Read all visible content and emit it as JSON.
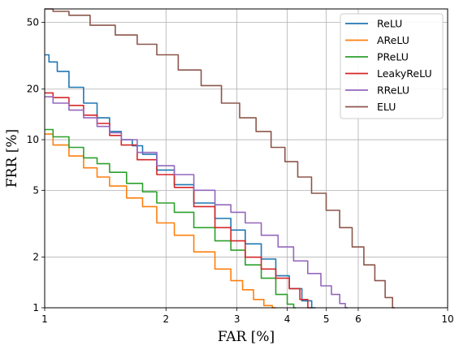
{
  "chart_data": {
    "type": "line",
    "xlabel": "FAR [%]",
    "ylabel": "FRR [%]",
    "xscale": "log",
    "yscale": "log",
    "xlim": [
      1,
      10
    ],
    "ylim": [
      1,
      60
    ],
    "xticks": [
      1,
      2,
      3,
      4,
      5,
      6,
      10
    ],
    "yticks": [
      1,
      2,
      5,
      10,
      20,
      50
    ],
    "grid": true,
    "legend_position": "top-right",
    "series": [
      {
        "name": "ReLU",
        "color": "#1f77b4",
        "points": [
          [
            1.0,
            32
          ],
          [
            1.05,
            29
          ],
          [
            1.1,
            25.5
          ],
          [
            1.2,
            20.5
          ],
          [
            1.3,
            16.5
          ],
          [
            1.4,
            13.5
          ],
          [
            1.5,
            11.2
          ],
          [
            1.6,
            10
          ],
          [
            1.7,
            9.2
          ],
          [
            1.8,
            8.2
          ],
          [
            2.0,
            6.6
          ],
          [
            2.2,
            5.4
          ],
          [
            2.5,
            4.2
          ],
          [
            2.8,
            3.4
          ],
          [
            3.0,
            2.9
          ],
          [
            3.3,
            2.4
          ],
          [
            3.6,
            1.95
          ],
          [
            3.9,
            1.55
          ],
          [
            4.2,
            1.3
          ],
          [
            4.5,
            1.1
          ],
          [
            4.7,
            1.0
          ]
        ]
      },
      {
        "name": "AReLU",
        "color": "#ff7f0e",
        "points": [
          [
            1.0,
            10.8
          ],
          [
            1.1,
            9.3
          ],
          [
            1.2,
            8.0
          ],
          [
            1.3,
            6.8
          ],
          [
            1.4,
            6.0
          ],
          [
            1.5,
            5.3
          ],
          [
            1.7,
            4.5
          ],
          [
            1.8,
            4.0
          ],
          [
            2.0,
            3.2
          ],
          [
            2.2,
            2.7
          ],
          [
            2.5,
            2.15
          ],
          [
            2.8,
            1.7
          ],
          [
            3.0,
            1.45
          ],
          [
            3.2,
            1.28
          ],
          [
            3.4,
            1.12
          ],
          [
            3.6,
            1.03
          ],
          [
            3.75,
            1.0
          ]
        ]
      },
      {
        "name": "PReLU",
        "color": "#2ca02c",
        "points": [
          [
            1.0,
            11.5
          ],
          [
            1.1,
            10.4
          ],
          [
            1.2,
            9.0
          ],
          [
            1.3,
            7.8
          ],
          [
            1.4,
            7.2
          ],
          [
            1.5,
            6.4
          ],
          [
            1.7,
            5.5
          ],
          [
            1.8,
            4.9
          ],
          [
            2.0,
            4.2
          ],
          [
            2.2,
            3.7
          ],
          [
            2.5,
            3.0
          ],
          [
            2.8,
            2.5
          ],
          [
            3.0,
            2.2
          ],
          [
            3.3,
            1.8
          ],
          [
            3.6,
            1.5
          ],
          [
            3.9,
            1.2
          ],
          [
            4.1,
            1.05
          ],
          [
            4.2,
            1.0
          ]
        ]
      },
      {
        "name": "LeakyReLU",
        "color": "#d62728",
        "points": [
          [
            1.0,
            19.0
          ],
          [
            1.1,
            17.8
          ],
          [
            1.2,
            16.0
          ],
          [
            1.3,
            14.0
          ],
          [
            1.4,
            12.5
          ],
          [
            1.5,
            10.6
          ],
          [
            1.6,
            9.3
          ],
          [
            1.8,
            7.6
          ],
          [
            2.0,
            6.2
          ],
          [
            2.2,
            5.2
          ],
          [
            2.5,
            4.0
          ],
          [
            2.8,
            3.0
          ],
          [
            3.0,
            2.5
          ],
          [
            3.3,
            2.0
          ],
          [
            3.6,
            1.7
          ],
          [
            3.9,
            1.5
          ],
          [
            4.2,
            1.3
          ],
          [
            4.4,
            1.12
          ],
          [
            4.6,
            1.0
          ]
        ]
      },
      {
        "name": "RReLU",
        "color": "#9467bd",
        "points": [
          [
            1.0,
            18.0
          ],
          [
            1.1,
            16.5
          ],
          [
            1.2,
            15.0
          ],
          [
            1.3,
            13.5
          ],
          [
            1.4,
            12.0
          ],
          [
            1.5,
            11.0
          ],
          [
            1.6,
            10.0
          ],
          [
            1.8,
            8.4
          ],
          [
            2.0,
            7.0
          ],
          [
            2.2,
            6.2
          ],
          [
            2.5,
            5.0
          ],
          [
            2.8,
            4.1
          ],
          [
            3.0,
            3.7
          ],
          [
            3.3,
            3.2
          ],
          [
            3.6,
            2.7
          ],
          [
            4.0,
            2.3
          ],
          [
            4.3,
            1.9
          ],
          [
            4.7,
            1.6
          ],
          [
            5.0,
            1.35
          ],
          [
            5.3,
            1.2
          ],
          [
            5.5,
            1.06
          ],
          [
            5.65,
            1.0
          ]
        ]
      },
      {
        "name": "ELU",
        "color": "#8c564b",
        "points": [
          [
            1.0,
            60
          ],
          [
            1.1,
            58
          ],
          [
            1.2,
            55
          ],
          [
            1.4,
            48
          ],
          [
            1.6,
            42
          ],
          [
            1.8,
            37
          ],
          [
            2.0,
            32
          ],
          [
            2.3,
            26
          ],
          [
            2.6,
            21
          ],
          [
            2.9,
            16.5
          ],
          [
            3.2,
            13.5
          ],
          [
            3.5,
            11.2
          ],
          [
            3.8,
            9.0
          ],
          [
            4.1,
            7.4
          ],
          [
            4.4,
            6.0
          ],
          [
            4.8,
            4.8
          ],
          [
            5.2,
            3.8
          ],
          [
            5.6,
            3.0
          ],
          [
            6.0,
            2.3
          ],
          [
            6.4,
            1.8
          ],
          [
            6.8,
            1.45
          ],
          [
            7.2,
            1.15
          ],
          [
            7.4,
            1.0
          ]
        ]
      }
    ]
  }
}
